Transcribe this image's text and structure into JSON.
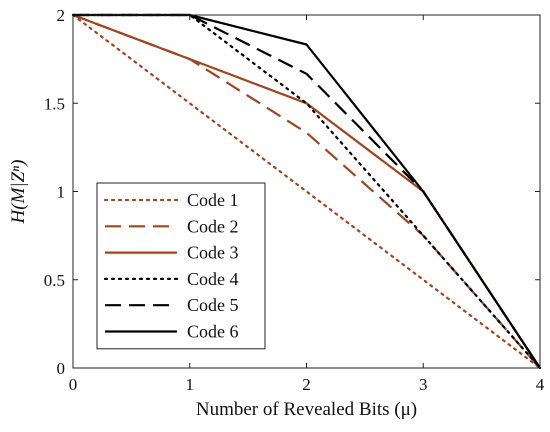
{
  "chart_data": {
    "type": "line",
    "title": "",
    "xlabel": "Number of Revealed Bits (μ)",
    "ylabel": "H(M|Zⁿ)",
    "xlim": [
      0,
      4
    ],
    "ylim": [
      0,
      2
    ],
    "xticks": [
      "0",
      "1",
      "2",
      "3",
      "4"
    ],
    "yticks": [
      "0",
      "0.5",
      "1",
      "1.5",
      "2"
    ],
    "grid": false,
    "legend_position": "bottom-left",
    "x": [
      0,
      1,
      2,
      3,
      4
    ],
    "series": [
      {
        "name": "Code 1",
        "values": [
          2,
          1.5,
          1,
          0.5,
          0
        ],
        "color": "#a0451c",
        "style": "dotted"
      },
      {
        "name": "Code 2",
        "values": [
          2,
          1.75,
          1.333,
          0.75,
          0
        ],
        "color": "#a0451c",
        "style": "dashed"
      },
      {
        "name": "Code 3",
        "values": [
          2,
          1.75,
          1.5,
          1,
          0
        ],
        "color": "#a0451c",
        "style": "solid"
      },
      {
        "name": "Code 4",
        "values": [
          2,
          2,
          1.5,
          0.75,
          0
        ],
        "color": "#000000",
        "style": "dotted"
      },
      {
        "name": "Code 5",
        "values": [
          2,
          2,
          1.667,
          1,
          0
        ],
        "color": "#000000",
        "style": "dashed"
      },
      {
        "name": "Code 6",
        "values": [
          2,
          2,
          1.833,
          1,
          0
        ],
        "color": "#000000",
        "style": "solid"
      }
    ]
  }
}
